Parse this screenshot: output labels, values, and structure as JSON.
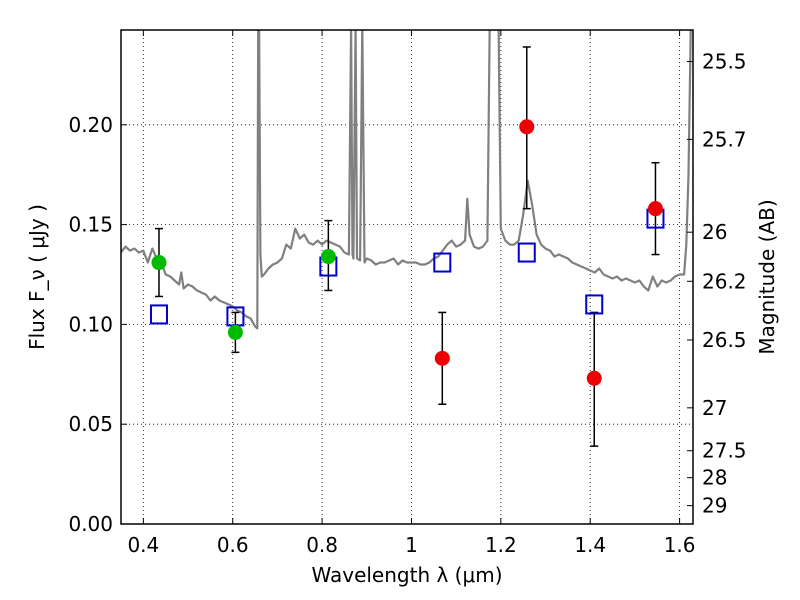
{
  "chart_data": {
    "type": "scatter",
    "xlabel": "Wavelength λ (μm)",
    "ylabel": "Flux F_ν ( μJy )",
    "ylabel_right": "Magnitude (AB)",
    "xlim": [
      0.35,
      1.63
    ],
    "ylim": [
      0.0,
      0.2475
    ],
    "x_ticks": [
      0.4,
      0.6,
      0.8,
      1.0,
      1.2,
      1.4,
      1.6
    ],
    "x_tick_labels": [
      "0.4",
      "0.6",
      "0.8",
      "1",
      "1.2",
      "1.4",
      "1.6"
    ],
    "y_ticks": [
      0.0,
      0.05,
      0.1,
      0.15,
      0.2
    ],
    "y_tick_labels": [
      "0.00",
      "0.05",
      "0.10",
      "0.15",
      "0.20"
    ],
    "right_ticks": [
      {
        "label": "25.5",
        "flux": 0.2317
      },
      {
        "label": "25.7",
        "flux": 0.1927
      },
      {
        "label": "26",
        "flux": 0.1462
      },
      {
        "label": "26.2",
        "flux": 0.1216
      },
      {
        "label": "26.5",
        "flux": 0.0922
      },
      {
        "label": "27",
        "flux": 0.0582
      },
      {
        "label": "27.5",
        "flux": 0.0367
      },
      {
        "label": "28",
        "flux": 0.0232
      },
      {
        "label": "29",
        "flux": 0.0092
      }
    ],
    "grid": true,
    "series": [
      {
        "marker": "circle",
        "color": "#00bb00",
        "points": [
          {
            "x": 0.435,
            "y": 0.131,
            "err_lo": 0.017,
            "err_hi": 0.017
          },
          {
            "x": 0.606,
            "y": 0.096,
            "err_lo": 0.01,
            "err_hi": 0.01
          },
          {
            "x": 0.814,
            "y": 0.134,
            "err_lo": 0.017,
            "err_hi": 0.018
          }
        ]
      },
      {
        "marker": "circle",
        "color": "#ee0000",
        "points": [
          {
            "x": 1.069,
            "y": 0.083,
            "err_lo": 0.023,
            "err_hi": 0.023
          },
          {
            "x": 1.258,
            "y": 0.199,
            "err_lo": 0.041,
            "err_hi": 0.04
          },
          {
            "x": 1.409,
            "y": 0.073,
            "err_lo": 0.034,
            "err_hi": 0.033
          },
          {
            "x": 1.546,
            "y": 0.158,
            "err_lo": 0.023,
            "err_hi": 0.023
          }
        ]
      },
      {
        "marker": "square-open",
        "color": "#0000cc",
        "points": [
          {
            "x": 0.435,
            "y": 0.105
          },
          {
            "x": 0.606,
            "y": 0.104
          },
          {
            "x": 0.814,
            "y": 0.129
          },
          {
            "x": 1.069,
            "y": 0.131
          },
          {
            "x": 1.258,
            "y": 0.136
          },
          {
            "x": 1.409,
            "y": 0.11
          },
          {
            "x": 1.546,
            "y": 0.153
          }
        ]
      },
      {
        "marker": "line",
        "color": "#808080",
        "points": [
          [
            0.35,
            0.136
          ],
          [
            0.36,
            0.139
          ],
          [
            0.37,
            0.137
          ],
          [
            0.38,
            0.138
          ],
          [
            0.39,
            0.136
          ],
          [
            0.4,
            0.137
          ],
          [
            0.41,
            0.131
          ],
          [
            0.42,
            0.138
          ],
          [
            0.43,
            0.133
          ],
          [
            0.44,
            0.131
          ],
          [
            0.45,
            0.125
          ],
          [
            0.46,
            0.124
          ],
          [
            0.47,
            0.122
          ],
          [
            0.48,
            0.12
          ],
          [
            0.485,
            0.126
          ],
          [
            0.49,
            0.118
          ],
          [
            0.5,
            0.12
          ],
          [
            0.51,
            0.119
          ],
          [
            0.52,
            0.117
          ],
          [
            0.53,
            0.116
          ],
          [
            0.54,
            0.115
          ],
          [
            0.55,
            0.112
          ],
          [
            0.56,
            0.114
          ],
          [
            0.57,
            0.112
          ],
          [
            0.58,
            0.111
          ],
          [
            0.59,
            0.11
          ],
          [
            0.6,
            0.109
          ],
          [
            0.61,
            0.107
          ],
          [
            0.62,
            0.106
          ],
          [
            0.63,
            0.104
          ],
          [
            0.64,
            0.103
          ],
          [
            0.65,
            0.099
          ],
          [
            0.655,
            0.098
          ],
          [
            0.657,
            0.25
          ],
          [
            0.659,
            0.25
          ],
          [
            0.662,
            0.135
          ],
          [
            0.665,
            0.124
          ],
          [
            0.67,
            0.125
          ],
          [
            0.68,
            0.128
          ],
          [
            0.69,
            0.13
          ],
          [
            0.7,
            0.131
          ],
          [
            0.71,
            0.133
          ],
          [
            0.72,
            0.14
          ],
          [
            0.73,
            0.138
          ],
          [
            0.74,
            0.148
          ],
          [
            0.75,
            0.143
          ],
          [
            0.76,
            0.145
          ],
          [
            0.77,
            0.141
          ],
          [
            0.78,
            0.14
          ],
          [
            0.79,
            0.142
          ],
          [
            0.8,
            0.14
          ],
          [
            0.81,
            0.142
          ],
          [
            0.82,
            0.141
          ],
          [
            0.83,
            0.14
          ],
          [
            0.84,
            0.139
          ],
          [
            0.85,
            0.136
          ],
          [
            0.86,
            0.135
          ],
          [
            0.865,
            0.25
          ],
          [
            0.868,
            0.135
          ],
          [
            0.87,
            0.133
          ],
          [
            0.875,
            0.25
          ],
          [
            0.878,
            0.133
          ],
          [
            0.885,
            0.132
          ],
          [
            0.89,
            0.25
          ],
          [
            0.895,
            0.131
          ],
          [
            0.9,
            0.133
          ],
          [
            0.91,
            0.132
          ],
          [
            0.92,
            0.13
          ],
          [
            0.93,
            0.131
          ],
          [
            0.94,
            0.131
          ],
          [
            0.95,
            0.132
          ],
          [
            0.96,
            0.133
          ],
          [
            0.97,
            0.13
          ],
          [
            0.98,
            0.132
          ],
          [
            0.99,
            0.131
          ],
          [
            1.0,
            0.131
          ],
          [
            1.01,
            0.131
          ],
          [
            1.02,
            0.13
          ],
          [
            1.03,
            0.13
          ],
          [
            1.04,
            0.131
          ],
          [
            1.05,
            0.133
          ],
          [
            1.06,
            0.134
          ],
          [
            1.07,
            0.137
          ],
          [
            1.08,
            0.14
          ],
          [
            1.09,
            0.142
          ],
          [
            1.1,
            0.139
          ],
          [
            1.11,
            0.14
          ],
          [
            1.12,
            0.142
          ],
          [
            1.125,
            0.163
          ],
          [
            1.13,
            0.145
          ],
          [
            1.14,
            0.139
          ],
          [
            1.15,
            0.138
          ],
          [
            1.16,
            0.139
          ],
          [
            1.17,
            0.142
          ],
          [
            1.175,
            0.25
          ],
          [
            1.18,
            0.25
          ],
          [
            1.185,
            0.25
          ],
          [
            1.19,
            0.25
          ],
          [
            1.195,
            0.25
          ],
          [
            1.2,
            0.148
          ],
          [
            1.21,
            0.142
          ],
          [
            1.22,
            0.14
          ],
          [
            1.23,
            0.14
          ],
          [
            1.24,
            0.142
          ],
          [
            1.25,
            0.155
          ],
          [
            1.26,
            0.172
          ],
          [
            1.27,
            0.16
          ],
          [
            1.28,
            0.145
          ],
          [
            1.29,
            0.14
          ],
          [
            1.3,
            0.138
          ],
          [
            1.31,
            0.137
          ],
          [
            1.32,
            0.134
          ],
          [
            1.33,
            0.135
          ],
          [
            1.34,
            0.134
          ],
          [
            1.35,
            0.133
          ],
          [
            1.36,
            0.131
          ],
          [
            1.37,
            0.13
          ],
          [
            1.38,
            0.129
          ],
          [
            1.39,
            0.128
          ],
          [
            1.4,
            0.127
          ],
          [
            1.41,
            0.126
          ],
          [
            1.42,
            0.128
          ],
          [
            1.43,
            0.125
          ],
          [
            1.44,
            0.124
          ],
          [
            1.45,
            0.123
          ],
          [
            1.46,
            0.124
          ],
          [
            1.47,
            0.122
          ],
          [
            1.48,
            0.123
          ],
          [
            1.49,
            0.122
          ],
          [
            1.5,
            0.121
          ],
          [
            1.51,
            0.122
          ],
          [
            1.52,
            0.119
          ],
          [
            1.53,
            0.117
          ],
          [
            1.54,
            0.124
          ],
          [
            1.55,
            0.119
          ],
          [
            1.56,
            0.122
          ],
          [
            1.57,
            0.121
          ],
          [
            1.58,
            0.122
          ],
          [
            1.59,
            0.124
          ],
          [
            1.6,
            0.125
          ],
          [
            1.61,
            0.125
          ],
          [
            1.615,
            0.14
          ],
          [
            1.62,
            0.175
          ],
          [
            1.625,
            0.25
          ],
          [
            1.63,
            0.25
          ]
        ]
      }
    ]
  }
}
